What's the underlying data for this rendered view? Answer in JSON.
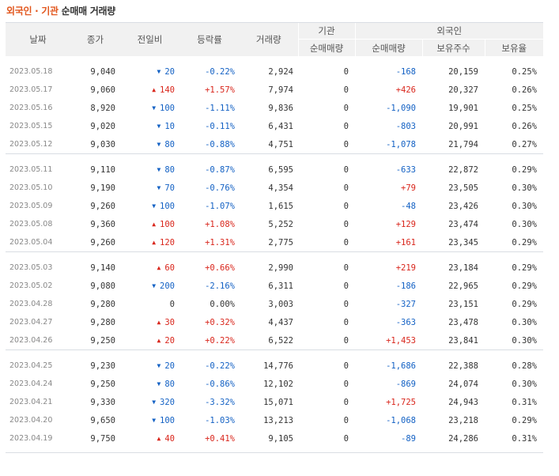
{
  "title": {
    "part1": "외국인 · 기관",
    "part2": "순매매 거래량"
  },
  "headers": {
    "date": "날짜",
    "close": "종가",
    "change": "전일비",
    "rate": "등락률",
    "volume": "거래량",
    "inst": "기관",
    "inst_net": "순매매량",
    "foreign": "외국인",
    "foreign_net": "순매매량",
    "foreign_hold": "보유주수",
    "foreign_ratio": "보유율"
  },
  "colors": {
    "up": "#d9261c",
    "down": "#1361c4",
    "accent": "#e2571e"
  },
  "groups": [
    [
      {
        "date": "2023.05.18",
        "close": "9,040",
        "dir": "down",
        "change": "20",
        "rate": "-0.22%",
        "volume": "2,924",
        "inst": "0",
        "fnet": "-168",
        "fdir": "down",
        "hold": "20,159",
        "ratio": "0.25%"
      },
      {
        "date": "2023.05.17",
        "close": "9,060",
        "dir": "up",
        "change": "140",
        "rate": "+1.57%",
        "volume": "7,974",
        "inst": "0",
        "fnet": "+426",
        "fdir": "up",
        "hold": "20,327",
        "ratio": "0.26%"
      },
      {
        "date": "2023.05.16",
        "close": "8,920",
        "dir": "down",
        "change": "100",
        "rate": "-1.11%",
        "volume": "9,836",
        "inst": "0",
        "fnet": "-1,090",
        "fdir": "down",
        "hold": "19,901",
        "ratio": "0.25%"
      },
      {
        "date": "2023.05.15",
        "close": "9,020",
        "dir": "down",
        "change": "10",
        "rate": "-0.11%",
        "volume": "6,431",
        "inst": "0",
        "fnet": "-803",
        "fdir": "down",
        "hold": "20,991",
        "ratio": "0.26%"
      },
      {
        "date": "2023.05.12",
        "close": "9,030",
        "dir": "down",
        "change": "80",
        "rate": "-0.88%",
        "volume": "4,751",
        "inst": "0",
        "fnet": "-1,078",
        "fdir": "down",
        "hold": "21,794",
        "ratio": "0.27%"
      }
    ],
    [
      {
        "date": "2023.05.11",
        "close": "9,110",
        "dir": "down",
        "change": "80",
        "rate": "-0.87%",
        "volume": "6,595",
        "inst": "0",
        "fnet": "-633",
        "fdir": "down",
        "hold": "22,872",
        "ratio": "0.29%"
      },
      {
        "date": "2023.05.10",
        "close": "9,190",
        "dir": "down",
        "change": "70",
        "rate": "-0.76%",
        "volume": "4,354",
        "inst": "0",
        "fnet": "+79",
        "fdir": "up",
        "hold": "23,505",
        "ratio": "0.30%"
      },
      {
        "date": "2023.05.09",
        "close": "9,260",
        "dir": "down",
        "change": "100",
        "rate": "-1.07%",
        "volume": "1,615",
        "inst": "0",
        "fnet": "-48",
        "fdir": "down",
        "hold": "23,426",
        "ratio": "0.30%"
      },
      {
        "date": "2023.05.08",
        "close": "9,360",
        "dir": "up",
        "change": "100",
        "rate": "+1.08%",
        "volume": "5,252",
        "inst": "0",
        "fnet": "+129",
        "fdir": "up",
        "hold": "23,474",
        "ratio": "0.30%"
      },
      {
        "date": "2023.05.04",
        "close": "9,260",
        "dir": "up",
        "change": "120",
        "rate": "+1.31%",
        "volume": "2,775",
        "inst": "0",
        "fnet": "+161",
        "fdir": "up",
        "hold": "23,345",
        "ratio": "0.29%"
      }
    ],
    [
      {
        "date": "2023.05.03",
        "close": "9,140",
        "dir": "up",
        "change": "60",
        "rate": "+0.66%",
        "volume": "2,990",
        "inst": "0",
        "fnet": "+219",
        "fdir": "up",
        "hold": "23,184",
        "ratio": "0.29%"
      },
      {
        "date": "2023.05.02",
        "close": "9,080",
        "dir": "down",
        "change": "200",
        "rate": "-2.16%",
        "volume": "6,311",
        "inst": "0",
        "fnet": "-186",
        "fdir": "down",
        "hold": "22,965",
        "ratio": "0.29%"
      },
      {
        "date": "2023.04.28",
        "close": "9,280",
        "dir": "flat",
        "change": "0",
        "rate": "0.00%",
        "volume": "3,003",
        "inst": "0",
        "fnet": "-327",
        "fdir": "down",
        "hold": "23,151",
        "ratio": "0.29%"
      },
      {
        "date": "2023.04.27",
        "close": "9,280",
        "dir": "up",
        "change": "30",
        "rate": "+0.32%",
        "volume": "4,437",
        "inst": "0",
        "fnet": "-363",
        "fdir": "down",
        "hold": "23,478",
        "ratio": "0.30%"
      },
      {
        "date": "2023.04.26",
        "close": "9,250",
        "dir": "up",
        "change": "20",
        "rate": "+0.22%",
        "volume": "6,522",
        "inst": "0",
        "fnet": "+1,453",
        "fdir": "up",
        "hold": "23,841",
        "ratio": "0.30%"
      }
    ],
    [
      {
        "date": "2023.04.25",
        "close": "9,230",
        "dir": "down",
        "change": "20",
        "rate": "-0.22%",
        "volume": "14,776",
        "inst": "0",
        "fnet": "-1,686",
        "fdir": "down",
        "hold": "22,388",
        "ratio": "0.28%"
      },
      {
        "date": "2023.04.24",
        "close": "9,250",
        "dir": "down",
        "change": "80",
        "rate": "-0.86%",
        "volume": "12,102",
        "inst": "0",
        "fnet": "-869",
        "fdir": "down",
        "hold": "24,074",
        "ratio": "0.30%"
      },
      {
        "date": "2023.04.21",
        "close": "9,330",
        "dir": "down",
        "change": "320",
        "rate": "-3.32%",
        "volume": "15,071",
        "inst": "0",
        "fnet": "+1,725",
        "fdir": "up",
        "hold": "24,943",
        "ratio": "0.31%"
      },
      {
        "date": "2023.04.20",
        "close": "9,650",
        "dir": "down",
        "change": "100",
        "rate": "-1.03%",
        "volume": "13,213",
        "inst": "0",
        "fnet": "-1,068",
        "fdir": "down",
        "hold": "23,218",
        "ratio": "0.29%"
      },
      {
        "date": "2023.04.19",
        "close": "9,750",
        "dir": "up",
        "change": "40",
        "rate": "+0.41%",
        "volume": "9,105",
        "inst": "0",
        "fnet": "-89",
        "fdir": "down",
        "hold": "24,286",
        "ratio": "0.31%"
      }
    ]
  ]
}
